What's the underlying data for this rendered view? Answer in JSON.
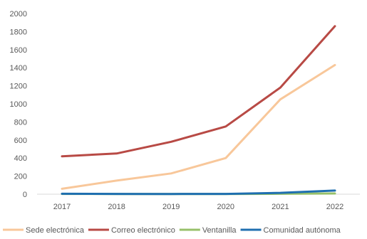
{
  "chart_data": {
    "type": "line",
    "title": "",
    "xlabel": "",
    "ylabel": "",
    "categories": [
      "2017",
      "2018",
      "2019",
      "2020",
      "2021",
      "2022"
    ],
    "ylim": [
      0,
      2000
    ],
    "yticks": [
      0,
      200,
      400,
      600,
      800,
      1000,
      1200,
      1400,
      1600,
      1800,
      2000
    ],
    "grid": false,
    "legend": "bottom",
    "series": [
      {
        "name": "Sede electrónica",
        "color": "#f8c79a",
        "values": [
          60,
          150,
          230,
          400,
          1050,
          1430
        ]
      },
      {
        "name": "Correo electrónico",
        "color": "#b84a45",
        "values": [
          420,
          450,
          580,
          750,
          1180,
          1860
        ]
      },
      {
        "name": "Ventanilla",
        "color": "#97c06a",
        "values": [
          3,
          2,
          2,
          2,
          5,
          8
        ]
      },
      {
        "name": "Comunidad autónoma",
        "color": "#1f6fb0",
        "values": [
          5,
          3,
          2,
          3,
          15,
          40
        ]
      }
    ]
  }
}
